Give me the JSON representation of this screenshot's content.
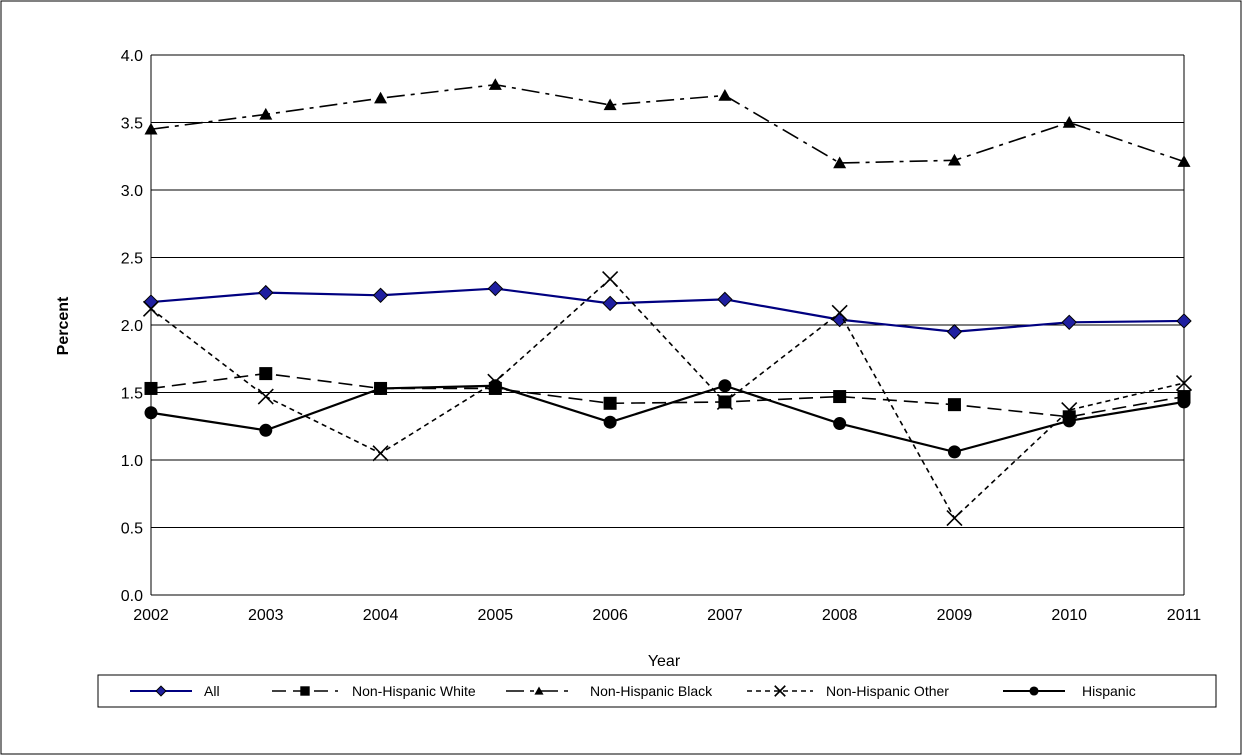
{
  "chart_data": {
    "type": "line",
    "title": "",
    "xlabel": "Year",
    "ylabel": "Percent",
    "categories": [
      "2002",
      "2003",
      "2004",
      "2005",
      "2006",
      "2007",
      "2008",
      "2009",
      "2010",
      "2011"
    ],
    "ylim": [
      0,
      4.0
    ],
    "yticks": [
      "0.0",
      "0.5",
      "1.0",
      "1.5",
      "2.0",
      "2.5",
      "3.0",
      "3.5",
      "4.0"
    ],
    "grid": "horizontal",
    "legend_position": "bottom",
    "series": [
      {
        "name": "All",
        "color": "#000080",
        "marker": "diamond",
        "dash": "solid",
        "values": [
          2.17,
          2.24,
          2.22,
          2.27,
          2.16,
          2.19,
          2.04,
          1.95,
          2.02,
          2.03
        ]
      },
      {
        "name": "Non-Hispanic White",
        "color": "#000000",
        "marker": "square",
        "dash": "dashed",
        "values": [
          1.53,
          1.64,
          1.53,
          1.53,
          1.42,
          1.43,
          1.47,
          1.41,
          1.32,
          1.47
        ]
      },
      {
        "name": "Non-Hispanic Black",
        "color": "#000000",
        "marker": "triangle",
        "dash": "dashdot",
        "values": [
          3.45,
          3.56,
          3.68,
          3.78,
          3.63,
          3.7,
          3.2,
          3.22,
          3.5,
          3.21
        ]
      },
      {
        "name": "Non-Hispanic Other",
        "color": "#000000",
        "marker": "star",
        "dash": "dotted",
        "values": [
          2.12,
          1.47,
          1.05,
          1.58,
          2.34,
          1.43,
          2.09,
          0.57,
          1.37,
          1.57
        ]
      },
      {
        "name": "Hispanic",
        "color": "#000000",
        "marker": "circle",
        "dash": "solid",
        "values": [
          1.35,
          1.22,
          1.53,
          1.55,
          1.28,
          1.55,
          1.27,
          1.06,
          1.29,
          1.43
        ]
      }
    ]
  }
}
